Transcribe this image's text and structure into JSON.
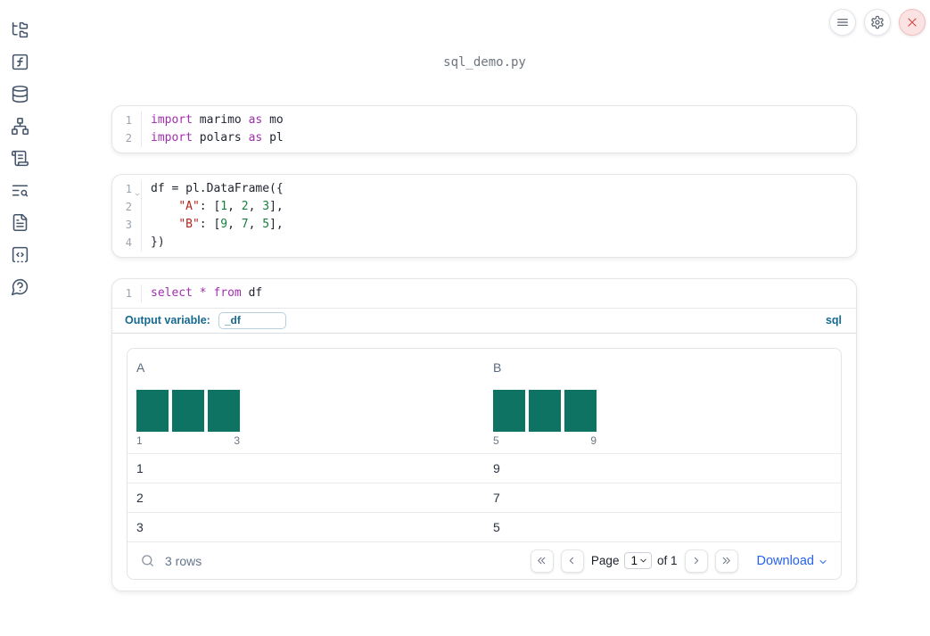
{
  "window": {
    "title": "sql_demo.py"
  },
  "colors": {
    "keyword": "#a02fae",
    "string": "#b5251d",
    "number": "#15803d",
    "plain": "#1f2430",
    "accent": "#17698f",
    "link": "#2563eb",
    "bar": "#0e7362"
  },
  "topbar": {
    "buttons": [
      {
        "id": "menu",
        "icon": "hamburger-menu-icon"
      },
      {
        "id": "settings",
        "icon": "gear-icon"
      },
      {
        "id": "close",
        "icon": "close-icon"
      }
    ]
  },
  "sidebar": {
    "items": [
      {
        "id": "file-explorer",
        "icon": "file-tree-icon"
      },
      {
        "id": "variables",
        "icon": "function-square-icon"
      },
      {
        "id": "datasources",
        "icon": "database-icon"
      },
      {
        "id": "dependencies",
        "icon": "dependency-graph-icon"
      },
      {
        "id": "logs",
        "icon": "scroll-icon"
      },
      {
        "id": "search-logs",
        "icon": "list-search-icon"
      },
      {
        "id": "documentation",
        "icon": "document-icon"
      },
      {
        "id": "snippets",
        "icon": "code-snippet-icon"
      },
      {
        "id": "help",
        "icon": "help-chat-icon"
      }
    ]
  },
  "cells": [
    {
      "type": "code",
      "lines": [
        {
          "num": "1",
          "tokens": [
            {
              "t": "import",
              "c": "kw"
            },
            {
              "t": " marimo ",
              "c": "p"
            },
            {
              "t": "as",
              "c": "kw"
            },
            {
              "t": " mo",
              "c": "p"
            }
          ]
        },
        {
          "num": "2",
          "tokens": [
            {
              "t": "import",
              "c": "kw"
            },
            {
              "t": " polars ",
              "c": "p"
            },
            {
              "t": "as",
              "c": "kw"
            },
            {
              "t": " pl",
              "c": "p"
            }
          ]
        }
      ]
    },
    {
      "type": "code",
      "lines": [
        {
          "num": "1",
          "fold": true,
          "tokens": [
            {
              "t": "df = pl.DataFrame({",
              "c": "p"
            }
          ]
        },
        {
          "num": "2",
          "tokens": [
            {
              "t": "    ",
              "c": "p"
            },
            {
              "t": "\"A\"",
              "c": "str"
            },
            {
              "t": ": [",
              "c": "p"
            },
            {
              "t": "1",
              "c": "num"
            },
            {
              "t": ", ",
              "c": "p"
            },
            {
              "t": "2",
              "c": "num"
            },
            {
              "t": ", ",
              "c": "p"
            },
            {
              "t": "3",
              "c": "num"
            },
            {
              "t": "],",
              "c": "p"
            }
          ]
        },
        {
          "num": "3",
          "tokens": [
            {
              "t": "    ",
              "c": "p"
            },
            {
              "t": "\"B\"",
              "c": "str"
            },
            {
              "t": ": [",
              "c": "p"
            },
            {
              "t": "9",
              "c": "num"
            },
            {
              "t": ", ",
              "c": "p"
            },
            {
              "t": "7",
              "c": "num"
            },
            {
              "t": ", ",
              "c": "p"
            },
            {
              "t": "5",
              "c": "num"
            },
            {
              "t": "],",
              "c": "p"
            }
          ]
        },
        {
          "num": "4",
          "tokens": [
            {
              "t": "})",
              "c": "p"
            }
          ]
        }
      ]
    },
    {
      "type": "sql",
      "lines": [
        {
          "num": "1",
          "tokens": [
            {
              "t": "select",
              "c": "kw"
            },
            {
              "t": " ",
              "c": "p"
            },
            {
              "t": "*",
              "c": "kw"
            },
            {
              "t": " ",
              "c": "p"
            },
            {
              "t": "from",
              "c": "kw"
            },
            {
              "t": " df",
              "c": "p"
            }
          ]
        }
      ],
      "output_variable_label": "Output variable:",
      "output_variable_value": "_df",
      "language_badge": "sql"
    }
  ],
  "table": {
    "columns": [
      {
        "name": "A",
        "histogram": {
          "type": "bar",
          "bars": [
            1,
            1,
            1
          ],
          "min_label": "1",
          "max_label": "3"
        }
      },
      {
        "name": "B",
        "histogram": {
          "type": "bar",
          "bars": [
            1,
            1,
            1
          ],
          "min_label": "5",
          "max_label": "9"
        }
      }
    ],
    "rows": [
      [
        "1",
        "9"
      ],
      [
        "2",
        "7"
      ],
      [
        "3",
        "5"
      ]
    ],
    "footer": {
      "row_count": "3 rows",
      "page_label": "Page",
      "page_value": "1",
      "of_label": "of 1",
      "download_label": "Download"
    }
  }
}
